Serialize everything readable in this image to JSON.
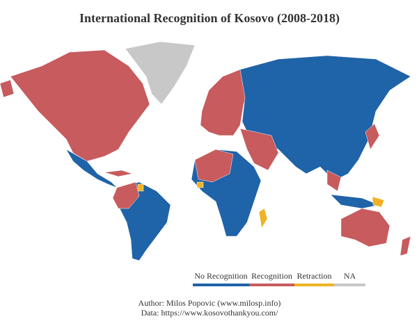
{
  "title": "International Recognition of Kosovo (2008-2018)",
  "legend": [
    {
      "label": "No Recognition",
      "color": "#1f63a8"
    },
    {
      "label": "Recognition",
      "color": "#c75b5d"
    },
    {
      "label": "Retraction",
      "color": "#f0b323"
    },
    {
      "label": "NA",
      "color": "#c8c8c8"
    }
  ],
  "credits": [
    "Author: Milos Popovic (www.milosp.info)",
    "Data: https://www.kosovothankyou.com/"
  ]
}
